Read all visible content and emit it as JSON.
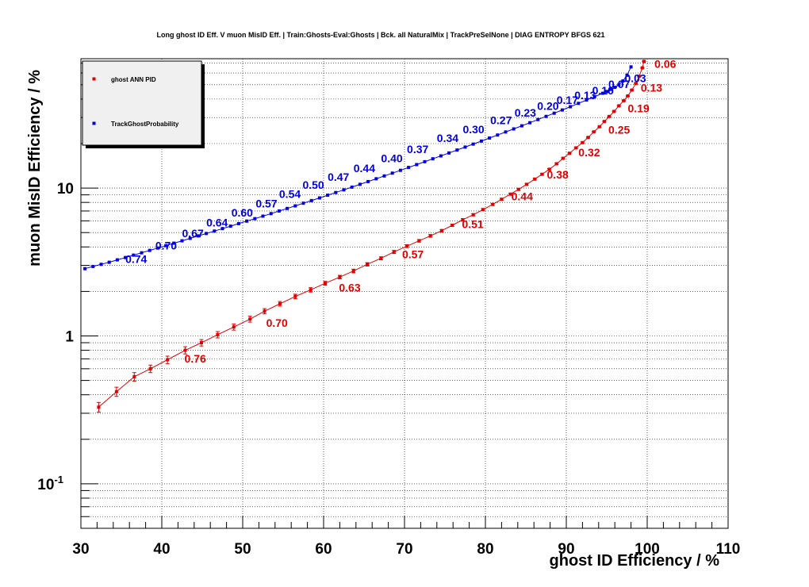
{
  "chart_data": {
    "type": "line",
    "title": "Long ghost ID Eff. V muon MisID Eff. | Train:Ghosts-Eval:Ghosts | Bck. all NaturalMix | TrackPreSelNone | DIAG ENTROPY BFGS 621",
    "xlabel": "ghost ID Efficiency / %",
    "ylabel": "muon MisID Efficiency / %",
    "xlim": [
      30,
      110
    ],
    "ylim": [
      0.05,
      75
    ],
    "yscale": "log",
    "grid": true,
    "legend_position": "top-left",
    "x_ticks": [
      {
        "v": 30,
        "label": "30"
      },
      {
        "v": 40,
        "label": "40"
      },
      {
        "v": 50,
        "label": "50"
      },
      {
        "v": 60,
        "label": "60"
      },
      {
        "v": 70,
        "label": "70"
      },
      {
        "v": 80,
        "label": "80"
      },
      {
        "v": 90,
        "label": "90"
      },
      {
        "v": 100,
        "label": "100"
      },
      {
        "v": 110,
        "label": "110"
      }
    ],
    "y_ticks": [
      {
        "v": 0.1,
        "base": "10",
        "exp": "-1"
      },
      {
        "v": 1,
        "base": "1",
        "exp": ""
      },
      {
        "v": 10,
        "base": "10",
        "exp": ""
      }
    ],
    "series": [
      {
        "name": "ghost ANN PID",
        "color": "#e00000",
        "x": [
          32.2,
          34.4,
          36.6,
          38.6,
          40.7,
          42.9,
          44.9,
          46.9,
          48.9,
          50.9,
          52.7,
          54.6,
          56.5,
          58.4,
          60.2,
          62.0,
          63.7,
          65.4,
          67.1,
          68.7,
          70.3,
          71.8,
          73.2,
          74.6,
          75.9,
          77.2,
          78.5,
          79.7,
          80.9,
          82.0,
          83.1,
          84.1,
          85.1,
          86.1,
          87.0,
          87.9,
          88.8,
          89.6,
          90.4,
          91.2,
          92.0,
          92.7,
          93.4,
          94.1,
          94.7,
          95.3,
          95.9,
          96.5,
          97.1,
          97.6,
          98.1,
          98.6,
          99.0,
          99.4,
          99.6
        ],
        "y": [
          0.33,
          0.42,
          0.53,
          0.6,
          0.69,
          0.8,
          0.9,
          1.02,
          1.15,
          1.3,
          1.47,
          1.65,
          1.85,
          2.05,
          2.27,
          2.5,
          2.75,
          3.05,
          3.35,
          3.7,
          4.05,
          4.4,
          4.75,
          5.15,
          5.6,
          6.1,
          6.6,
          7.15,
          7.75,
          8.4,
          9.1,
          9.8,
          10.6,
          11.5,
          12.4,
          13.4,
          14.6,
          15.9,
          17.2,
          18.7,
          20.3,
          22.0,
          24.0,
          26.0,
          28.2,
          30.5,
          33.0,
          36.0,
          39.0,
          42.0,
          46.0,
          51.0,
          57.0,
          65.0,
          72.0
        ],
        "err": [
          0.025,
          0.03,
          0.035,
          0.035,
          0.04,
          0.045,
          0.045,
          0.05,
          0.055,
          0.06,
          0.06,
          0.06,
          0.065,
          0.07,
          0.07,
          0.07,
          0.08,
          0.08,
          0.08,
          0.09,
          0.09,
          0.09,
          0.1,
          0.1,
          0.1,
          0.11,
          0.11,
          0.12,
          0.12,
          0.13,
          0.13,
          0.14,
          0.14,
          0.15,
          0.15,
          0.16,
          0.17,
          0.17,
          0.18,
          0.19,
          0.2,
          0.2,
          0.22,
          0.23,
          0.24,
          0.25,
          0.26,
          0.28,
          0.3,
          0.32,
          0.34,
          0.36,
          0.38,
          0.4,
          0.42
        ],
        "cut_labels": [
          {
            "x": 42.8,
            "y": 0.66,
            "text": "0.76"
          },
          {
            "x": 52.9,
            "y": 1.15,
            "text": "0.70"
          },
          {
            "x": 61.9,
            "y": 2.0,
            "text": "0.63"
          },
          {
            "x": 69.7,
            "y": 3.35,
            "text": "0.57"
          },
          {
            "x": 77.1,
            "y": 5.35,
            "text": "0.51"
          },
          {
            "x": 83.2,
            "y": 8.25,
            "text": "0.44"
          },
          {
            "x": 87.6,
            "y": 11.6,
            "text": "0.38"
          },
          {
            "x": 91.5,
            "y": 16.4,
            "text": "0.32"
          },
          {
            "x": 95.2,
            "y": 23.4,
            "text": "0.25"
          },
          {
            "x": 97.6,
            "y": 32.6,
            "text": "0.19"
          },
          {
            "x": 99.2,
            "y": 45.0,
            "text": "0.13"
          },
          {
            "x": 100.9,
            "y": 65.0,
            "text": "0.06"
          }
        ]
      },
      {
        "name": "TrackGhostProbability",
        "color": "#0000e0",
        "x": [
          30.5,
          31.5,
          32.5,
          33.5,
          34.5,
          35.5,
          36.5,
          37.5,
          38.5,
          39.5,
          40.5,
          41.5,
          42.5,
          43.5,
          44.5,
          45.5,
          46.5,
          47.5,
          48.5,
          49.5,
          50.5,
          51.5,
          52.5,
          53.5,
          54.5,
          55.5,
          56.5,
          57.5,
          58.5,
          59.5,
          60.5,
          61.5,
          62.5,
          63.5,
          64.5,
          65.5,
          66.5,
          67.5,
          68.5,
          69.5,
          70.5,
          71.5,
          72.5,
          73.5,
          74.5,
          75.5,
          76.5,
          77.5,
          78.5,
          79.5,
          80.5,
          81.5,
          82.5,
          83.5,
          84.5,
          85.5,
          86.5,
          87.5,
          88.5,
          89.5,
          90.5,
          91.5,
          92.5,
          93.5,
          94.5,
          95.0,
          95.5,
          96.0,
          96.5,
          97.0,
          97.5,
          98.0
        ],
        "y": [
          2.85,
          2.95,
          3.05,
          3.15,
          3.27,
          3.39,
          3.52,
          3.65,
          3.79,
          3.93,
          4.08,
          4.24,
          4.4,
          4.57,
          4.75,
          4.93,
          5.12,
          5.32,
          5.53,
          5.75,
          5.98,
          6.21,
          6.46,
          6.72,
          7.0,
          7.28,
          7.58,
          7.9,
          8.23,
          8.58,
          8.95,
          9.33,
          9.73,
          10.15,
          10.6,
          11.07,
          11.56,
          12.08,
          12.62,
          13.19,
          13.79,
          14.42,
          15.08,
          15.78,
          16.51,
          17.28,
          18.09,
          18.94,
          19.84,
          20.79,
          21.8,
          22.85,
          23.96,
          25.13,
          26.37,
          27.68,
          29.07,
          30.54,
          32.1,
          33.75,
          35.5,
          37.4,
          39.4,
          41.5,
          43.8,
          45.0,
          46.5,
          48.0,
          50.0,
          53.0,
          58.0,
          66.0
        ],
        "err": [],
        "cut_labels": [
          {
            "x": 35.5,
            "y": 3.12,
            "text": "0.74"
          },
          {
            "x": 39.2,
            "y": 3.85,
            "text": "0.70"
          },
          {
            "x": 42.5,
            "y": 4.65,
            "text": "0.67"
          },
          {
            "x": 45.5,
            "y": 5.5,
            "text": "0.64"
          },
          {
            "x": 48.6,
            "y": 6.4,
            "text": "0.60"
          },
          {
            "x": 51.6,
            "y": 7.4,
            "text": "0.57"
          },
          {
            "x": 54.5,
            "y": 8.6,
            "text": "0.54"
          },
          {
            "x": 57.4,
            "y": 9.9,
            "text": "0.50"
          },
          {
            "x": 60.5,
            "y": 11.2,
            "text": "0.47"
          },
          {
            "x": 63.7,
            "y": 12.8,
            "text": "0.44"
          },
          {
            "x": 67.1,
            "y": 15.0,
            "text": "0.40"
          },
          {
            "x": 70.3,
            "y": 17.2,
            "text": "0.37"
          },
          {
            "x": 74.0,
            "y": 20.5,
            "text": "0.34"
          },
          {
            "x": 77.2,
            "y": 23.5,
            "text": "0.30"
          },
          {
            "x": 80.6,
            "y": 27.0,
            "text": "0.27"
          },
          {
            "x": 83.6,
            "y": 30.5,
            "text": "0.23"
          },
          {
            "x": 86.4,
            "y": 33.8,
            "text": "0.20"
          },
          {
            "x": 88.8,
            "y": 37.0,
            "text": "0.17"
          },
          {
            "x": 91.0,
            "y": 40.0,
            "text": "0.13"
          },
          {
            "x": 93.2,
            "y": 43.0,
            "text": "0.10"
          },
          {
            "x": 95.2,
            "y": 47.5,
            "text": "0.07"
          },
          {
            "x": 97.2,
            "y": 52.0,
            "text": "0.03"
          }
        ]
      }
    ]
  },
  "legend": {
    "entries": [
      {
        "label": "ghost ANN PID",
        "color": "#e00000"
      },
      {
        "label": "TrackGhostProbability",
        "color": "#0000e0"
      }
    ]
  }
}
